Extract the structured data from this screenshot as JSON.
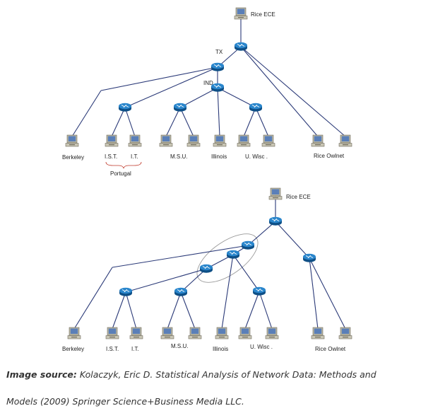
{
  "top_diagram": {
    "labels": {
      "rice_ece": "Rice ECE",
      "tx": "TX",
      "ind": "IND",
      "berkeley": "Berkeley",
      "ist": "I.S.T.",
      "it": "I.T.",
      "msu": "M.S.U.",
      "illinois": "Illinois",
      "uwisc": "U. Wisc .",
      "rice_owlnet": "Rice  Owlnet",
      "portugal": "Portugal"
    }
  },
  "bottom_diagram": {
    "labels": {
      "rice_ece": "Rice  ECE",
      "berkeley": "Berkeley",
      "ist": "I.S.T.",
      "it": "I.T.",
      "msu": "M.S.U.",
      "illinois": "Illinois",
      "uwisc": "U. Wisc .",
      "rice_owlnet": "Rice  Owlnet"
    }
  },
  "caption": {
    "source_label": "Image source:",
    "line1": " Kolaczyk, Eric D. Statistical Analysis of Network Data: Methods and",
    "line2": "Models (2009) Springer Science+Business Media LLC."
  },
  "colors": {
    "edge": "#2b3a78",
    "router": "#1a6fb0",
    "computer_body": "#b9b6a4",
    "computer_screen": "#5a7fb8",
    "highlight_ellipse": "#999999",
    "brace": "#c0392b"
  }
}
